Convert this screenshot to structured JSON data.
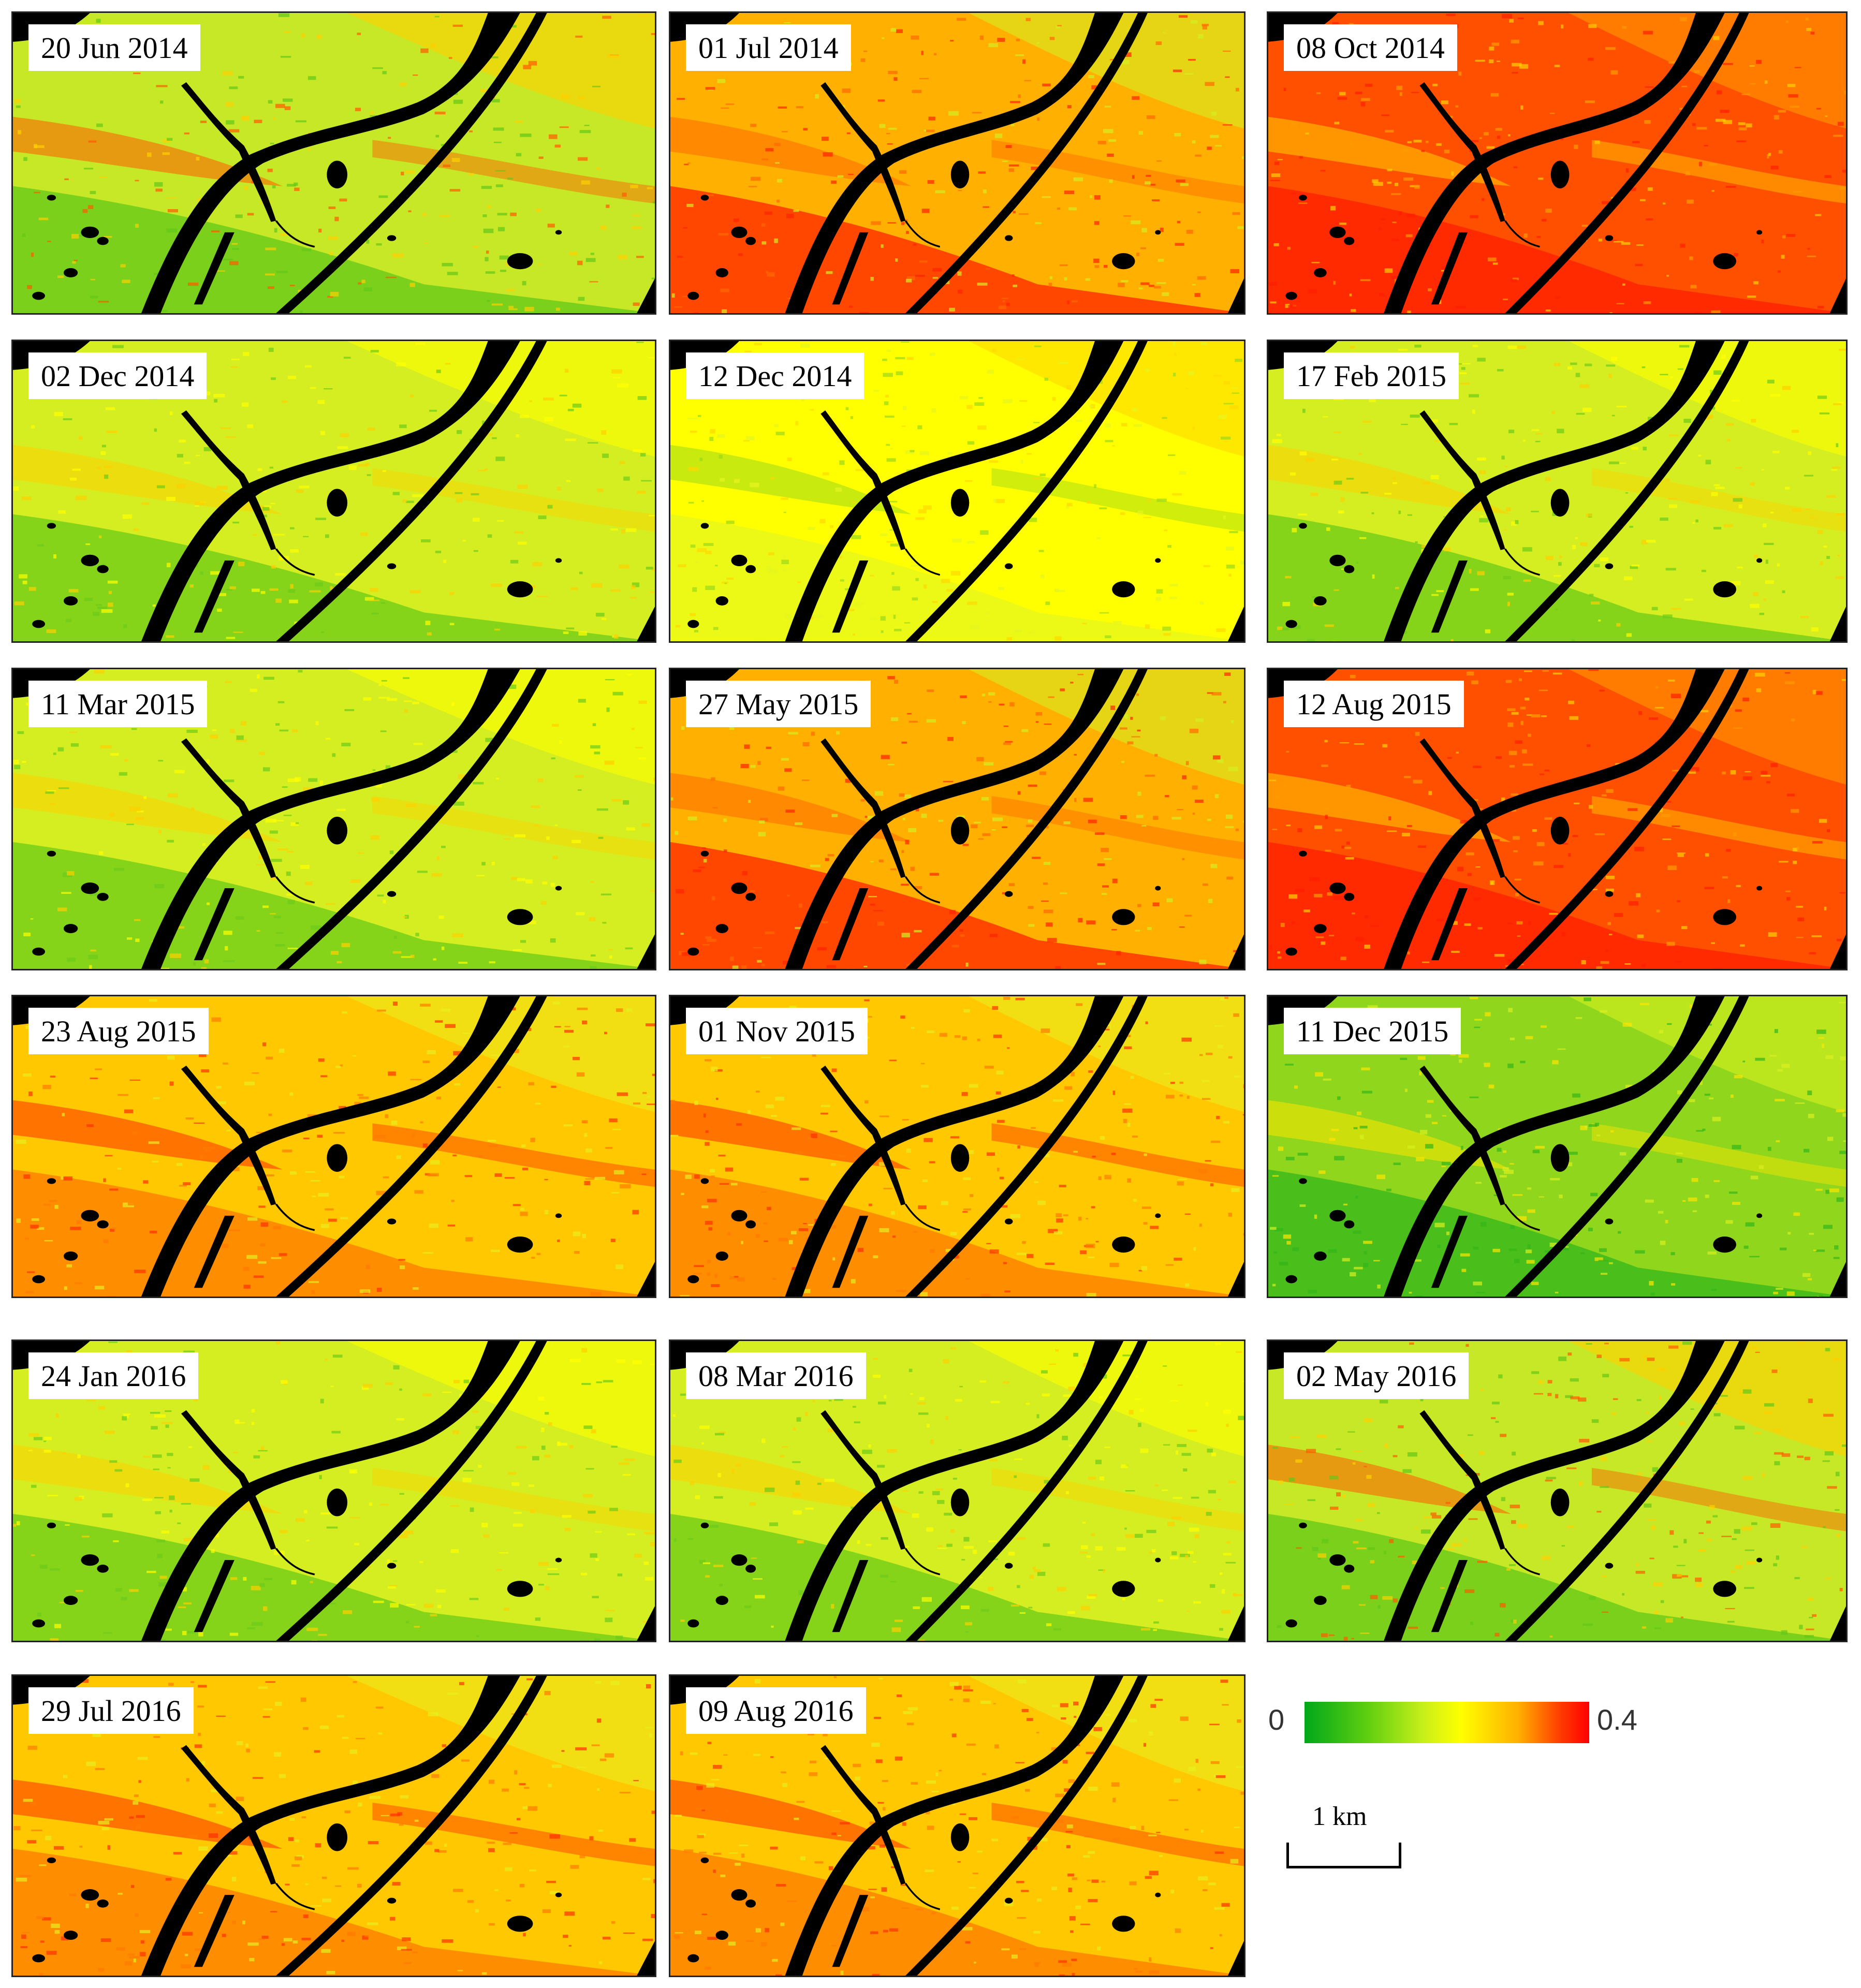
{
  "figure": {
    "panels": [
      {
        "date": "20 Jun 2014",
        "palette": "mixed"
      },
      {
        "date": "01 Jul 2014",
        "palette": "redmix"
      },
      {
        "date": "08 Oct 2014",
        "palette": "red"
      },
      {
        "date": "02 Dec 2014",
        "palette": "yellowgreen"
      },
      {
        "date": "12 Dec 2014",
        "palette": "yellow"
      },
      {
        "date": "17 Feb 2015",
        "palette": "yellowgreen"
      },
      {
        "date": "11 Mar 2015",
        "palette": "yellowgreen"
      },
      {
        "date": "27 May 2015",
        "palette": "redmix"
      },
      {
        "date": "12 Aug 2015",
        "palette": "red"
      },
      {
        "date": "23 Aug 2015",
        "palette": "orange"
      },
      {
        "date": "01 Nov 2015",
        "palette": "orange"
      },
      {
        "date": "11 Dec 2015",
        "palette": "green"
      },
      {
        "date": "24 Jan 2016",
        "palette": "yellowgreen"
      },
      {
        "date": "08 Mar 2016",
        "palette": "yellowgreen"
      },
      {
        "date": "02 May 2016",
        "palette": "mixed"
      },
      {
        "date": "29 Jul 2016",
        "palette": "orange"
      },
      {
        "date": "09 Aug 2016",
        "palette": "orange"
      }
    ],
    "legend": {
      "min_label": "0",
      "max_label": "0.4",
      "colors": [
        "#00a81a",
        "#ffff00",
        "#ff0000"
      ]
    },
    "scale_bar": {
      "label": "1 km"
    }
  }
}
